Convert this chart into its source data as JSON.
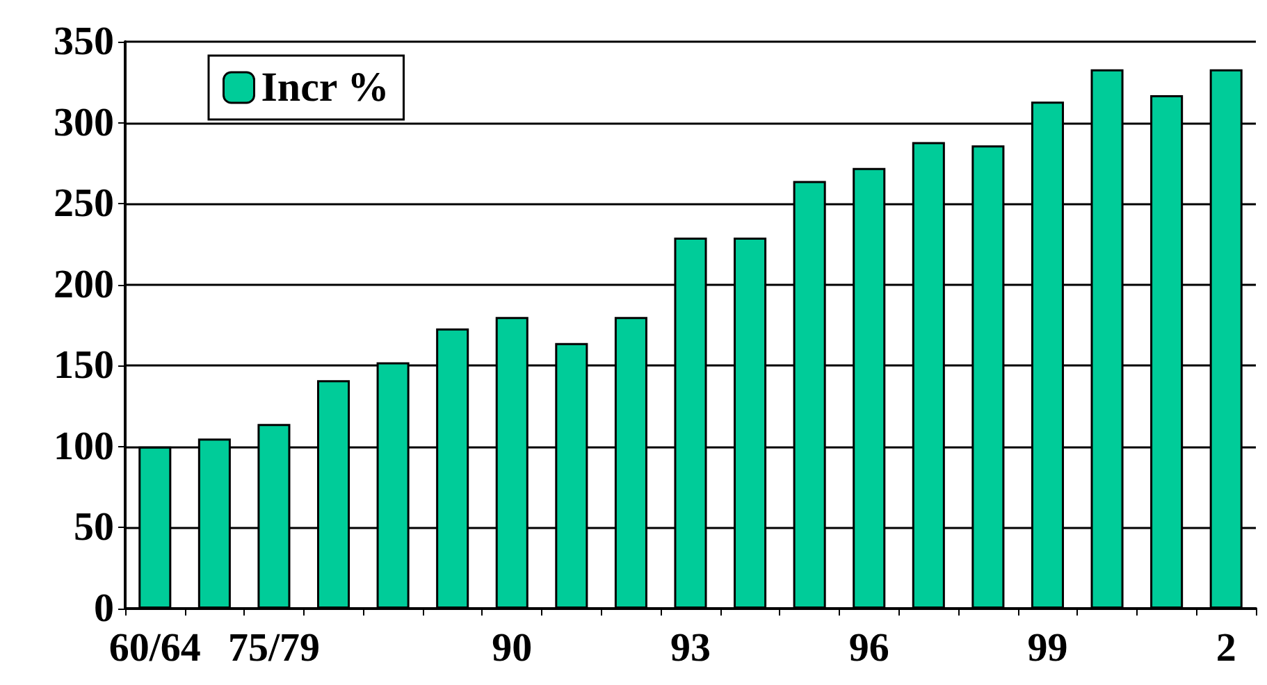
{
  "chart_data": {
    "type": "bar",
    "categories": [
      "60/64",
      null,
      "75/79",
      null,
      null,
      null,
      "90",
      null,
      null,
      "93",
      null,
      null,
      "96",
      null,
      null,
      "99",
      null,
      null,
      "2"
    ],
    "series": [
      {
        "name": "Incr %",
        "color": "#00cc99",
        "values": [
          100,
          105,
          114,
          141,
          152,
          173,
          180,
          164,
          180,
          229,
          229,
          264,
          272,
          288,
          286,
          313,
          333,
          317,
          333
        ]
      }
    ],
    "ylim": [
      0,
      350
    ],
    "yticks": [
      0,
      50,
      100,
      150,
      200,
      250,
      300,
      350
    ],
    "grid": "y",
    "legend": "top left"
  }
}
